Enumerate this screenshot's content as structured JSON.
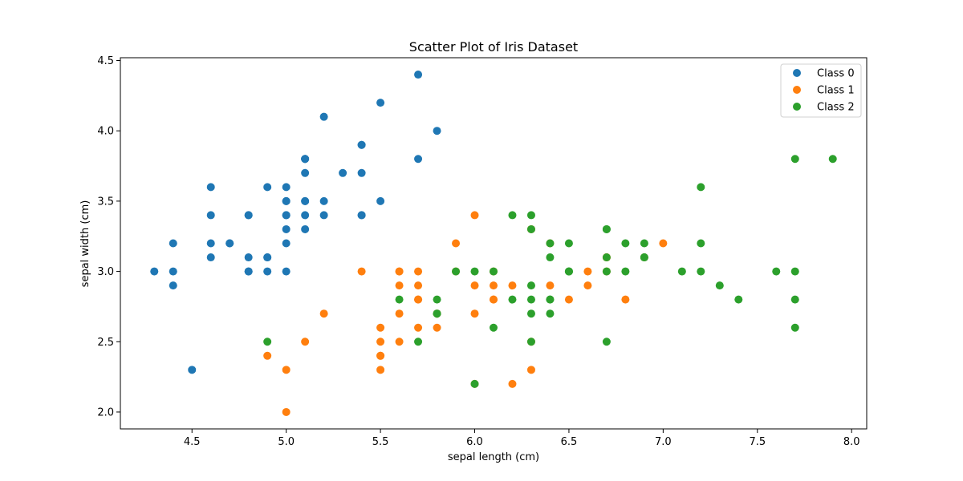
{
  "chart_data": {
    "type": "scatter",
    "title": "Scatter Plot of Iris Dataset",
    "xlabel": "sepal length (cm)",
    "ylabel": "sepal width (cm)",
    "xlim": [
      4.12,
      8.08
    ],
    "ylim": [
      1.88,
      4.52
    ],
    "xticks": [
      4.5,
      5.0,
      5.5,
      6.0,
      6.5,
      7.0,
      7.5,
      8.0
    ],
    "xtick_labels": [
      "4.5",
      "5.0",
      "5.5",
      "6.0",
      "6.5",
      "7.0",
      "7.5",
      "8.0"
    ],
    "yticks": [
      2.0,
      2.5,
      3.0,
      3.5,
      4.0,
      4.5
    ],
    "ytick_labels": [
      "2.0",
      "2.5",
      "3.0",
      "3.5",
      "4.0",
      "4.5"
    ],
    "grid": false,
    "legend_position": "top-right",
    "series": [
      {
        "name": "Class 0",
        "color": "#1f77b4",
        "points": [
          [
            5.1,
            3.5
          ],
          [
            4.9,
            3.0
          ],
          [
            4.7,
            3.2
          ],
          [
            4.6,
            3.1
          ],
          [
            5.0,
            3.6
          ],
          [
            5.4,
            3.9
          ],
          [
            4.6,
            3.4
          ],
          [
            5.0,
            3.4
          ],
          [
            4.4,
            2.9
          ],
          [
            4.9,
            3.1
          ],
          [
            5.4,
            3.7
          ],
          [
            4.8,
            3.4
          ],
          [
            4.8,
            3.0
          ],
          [
            4.3,
            3.0
          ],
          [
            5.8,
            4.0
          ],
          [
            5.7,
            4.4
          ],
          [
            5.4,
            3.9
          ],
          [
            5.1,
            3.5
          ],
          [
            5.7,
            3.8
          ],
          [
            5.1,
            3.8
          ],
          [
            5.4,
            3.4
          ],
          [
            5.1,
            3.7
          ],
          [
            4.6,
            3.6
          ],
          [
            5.1,
            3.3
          ],
          [
            4.8,
            3.4
          ],
          [
            5.0,
            3.0
          ],
          [
            5.0,
            3.4
          ],
          [
            5.2,
            3.5
          ],
          [
            5.2,
            3.4
          ],
          [
            4.7,
            3.2
          ],
          [
            4.8,
            3.1
          ],
          [
            5.4,
            3.4
          ],
          [
            5.2,
            4.1
          ],
          [
            5.5,
            4.2
          ],
          [
            4.9,
            3.1
          ],
          [
            5.0,
            3.2
          ],
          [
            5.5,
            3.5
          ],
          [
            4.9,
            3.6
          ],
          [
            4.4,
            3.0
          ],
          [
            5.1,
            3.4
          ],
          [
            5.0,
            3.5
          ],
          [
            4.5,
            2.3
          ],
          [
            4.4,
            3.2
          ],
          [
            5.0,
            3.5
          ],
          [
            5.1,
            3.8
          ],
          [
            4.8,
            3.0
          ],
          [
            5.1,
            3.8
          ],
          [
            4.6,
            3.2
          ],
          [
            5.3,
            3.7
          ],
          [
            5.0,
            3.3
          ]
        ]
      },
      {
        "name": "Class 1",
        "color": "#ff7f0e",
        "points": [
          [
            7.0,
            3.2
          ],
          [
            6.4,
            3.2
          ],
          [
            6.9,
            3.1
          ],
          [
            5.5,
            2.3
          ],
          [
            6.5,
            2.8
          ],
          [
            5.7,
            2.8
          ],
          [
            6.3,
            3.3
          ],
          [
            4.9,
            2.4
          ],
          [
            6.6,
            2.9
          ],
          [
            5.2,
            2.7
          ],
          [
            5.0,
            2.0
          ],
          [
            5.9,
            3.0
          ],
          [
            6.0,
            2.2
          ],
          [
            6.1,
            2.9
          ],
          [
            5.6,
            2.9
          ],
          [
            6.7,
            3.1
          ],
          [
            5.6,
            3.0
          ],
          [
            5.8,
            2.7
          ],
          [
            6.2,
            2.2
          ],
          [
            5.6,
            2.5
          ],
          [
            5.9,
            3.2
          ],
          [
            6.1,
            2.8
          ],
          [
            6.3,
            2.5
          ],
          [
            6.1,
            2.8
          ],
          [
            6.4,
            2.9
          ],
          [
            6.6,
            3.0
          ],
          [
            6.8,
            2.8
          ],
          [
            6.7,
            3.0
          ],
          [
            6.0,
            2.9
          ],
          [
            5.7,
            2.6
          ],
          [
            5.5,
            2.4
          ],
          [
            5.5,
            2.4
          ],
          [
            5.8,
            2.7
          ],
          [
            6.0,
            2.7
          ],
          [
            5.4,
            3.0
          ],
          [
            6.0,
            3.4
          ],
          [
            6.7,
            3.1
          ],
          [
            6.3,
            2.3
          ],
          [
            5.6,
            3.0
          ],
          [
            5.5,
            2.5
          ],
          [
            5.5,
            2.6
          ],
          [
            6.1,
            3.0
          ],
          [
            5.8,
            2.6
          ],
          [
            5.0,
            2.3
          ],
          [
            5.6,
            2.7
          ],
          [
            5.7,
            3.0
          ],
          [
            5.7,
            2.9
          ],
          [
            6.2,
            2.9
          ],
          [
            5.1,
            2.5
          ],
          [
            5.7,
            2.8
          ]
        ]
      },
      {
        "name": "Class 2",
        "color": "#2ca02c",
        "points": [
          [
            6.3,
            3.3
          ],
          [
            5.8,
            2.7
          ],
          [
            7.1,
            3.0
          ],
          [
            6.3,
            2.9
          ],
          [
            6.5,
            3.0
          ],
          [
            7.6,
            3.0
          ],
          [
            4.9,
            2.5
          ],
          [
            7.3,
            2.9
          ],
          [
            6.7,
            2.5
          ],
          [
            7.2,
            3.6
          ],
          [
            6.5,
            3.2
          ],
          [
            6.4,
            2.7
          ],
          [
            6.8,
            3.0
          ],
          [
            5.7,
            2.5
          ],
          [
            5.8,
            2.8
          ],
          [
            6.4,
            3.2
          ],
          [
            6.5,
            3.0
          ],
          [
            7.7,
            3.8
          ],
          [
            7.7,
            2.6
          ],
          [
            6.0,
            2.2
          ],
          [
            6.9,
            3.2
          ],
          [
            5.6,
            2.8
          ],
          [
            7.7,
            2.8
          ],
          [
            6.3,
            2.7
          ],
          [
            6.7,
            3.3
          ],
          [
            7.2,
            3.2
          ],
          [
            6.2,
            2.8
          ],
          [
            6.1,
            3.0
          ],
          [
            6.4,
            2.8
          ],
          [
            7.2,
            3.0
          ],
          [
            7.4,
            2.8
          ],
          [
            7.9,
            3.8
          ],
          [
            6.4,
            2.8
          ],
          [
            6.3,
            2.8
          ],
          [
            6.1,
            2.6
          ],
          [
            7.7,
            3.0
          ],
          [
            6.3,
            3.4
          ],
          [
            6.4,
            3.1
          ],
          [
            6.0,
            3.0
          ],
          [
            6.9,
            3.1
          ],
          [
            6.7,
            3.1
          ],
          [
            6.9,
            3.1
          ],
          [
            5.8,
            2.7
          ],
          [
            6.8,
            3.2
          ],
          [
            6.7,
            3.3
          ],
          [
            6.7,
            3.0
          ],
          [
            6.3,
            2.5
          ],
          [
            6.5,
            3.0
          ],
          [
            6.2,
            3.4
          ],
          [
            5.9,
            3.0
          ]
        ]
      }
    ]
  }
}
